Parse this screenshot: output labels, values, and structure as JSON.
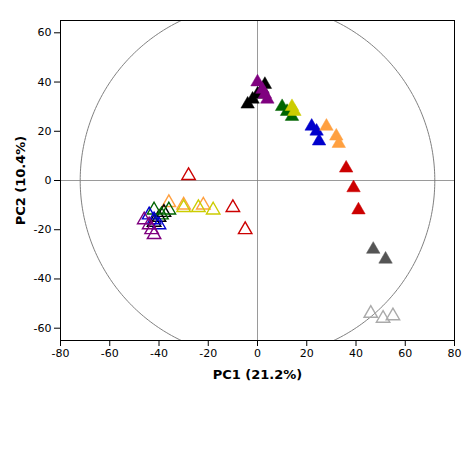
{
  "chart_data": {
    "type": "scatter",
    "xlabel": "PC1 (21.2%)",
    "ylabel": "PC2 (10.4%)",
    "xlim": [
      -80,
      80
    ],
    "ylim": [
      -65,
      65
    ],
    "xticks": [
      -80,
      -60,
      -40,
      -20,
      0,
      20,
      40,
      60,
      80
    ],
    "yticks": [
      -60,
      -40,
      -20,
      0,
      20,
      40,
      60
    ],
    "grid": false,
    "circle_center": [
      0,
      0
    ],
    "circle_radius": 72,
    "hline": 0,
    "vline": 0,
    "series": [
      {
        "color": "#000000",
        "marker": "triangle",
        "x": [
          -4,
          -2,
          0,
          2,
          3
        ],
        "y": [
          31,
          33,
          35,
          37,
          39
        ]
      },
      {
        "color": "#7f007f",
        "marker": "triangle",
        "x": [
          0,
          2,
          3,
          4
        ],
        "y": [
          40,
          37,
          35,
          33
        ]
      },
      {
        "color": "#006400",
        "marker": "triangle",
        "x": [
          10,
          12,
          14
        ],
        "y": [
          30,
          28,
          26
        ]
      },
      {
        "color": "#cccc00",
        "marker": "triangle",
        "x": [
          14,
          15
        ],
        "y": [
          30,
          28
        ]
      },
      {
        "color": "#0000cc",
        "marker": "triangle",
        "x": [
          22,
          24,
          25
        ],
        "y": [
          22,
          20,
          16
        ]
      },
      {
        "color": "#ffa040",
        "marker": "triangle",
        "x": [
          28,
          32,
          33
        ],
        "y": [
          22,
          18,
          15
        ]
      },
      {
        "color": "#cc0000",
        "marker": "triangle",
        "x": [
          36,
          39,
          41
        ],
        "y": [
          5,
          -3,
          -12
        ]
      },
      {
        "color": "#555555",
        "marker": "triangle",
        "x": [
          47,
          52
        ],
        "y": [
          -28,
          -32
        ]
      },
      {
        "color": "#cc0000",
        "marker": "triangle-open",
        "x": [
          -28,
          -10,
          -5
        ],
        "y": [
          2,
          -11,
          -20
        ]
      },
      {
        "color": "#ffa040",
        "marker": "triangle-open",
        "x": [
          -36,
          -30,
          -22
        ],
        "y": [
          -9,
          -10,
          -10
        ]
      },
      {
        "color": "#cccc00",
        "marker": "triangle-open",
        "x": [
          -30,
          -24,
          -18
        ],
        "y": [
          -11,
          -11,
          -12
        ]
      },
      {
        "color": "#000000",
        "marker": "triangle-open",
        "x": [
          -42,
          -40,
          -38
        ],
        "y": [
          -17,
          -15,
          -13
        ]
      },
      {
        "color": "#006400",
        "marker": "triangle-open",
        "x": [
          -42,
          -39,
          -36
        ],
        "y": [
          -12,
          -14,
          -12
        ]
      },
      {
        "color": "#0000cc",
        "marker": "triangle-open",
        "x": [
          -44,
          -42,
          -40
        ],
        "y": [
          -14,
          -16,
          -18
        ]
      },
      {
        "color": "#7f007f",
        "marker": "triangle-open",
        "x": [
          -46,
          -44,
          -43,
          -42
        ],
        "y": [
          -16,
          -18,
          -20,
          -22
        ]
      },
      {
        "color": "#aaaaaa",
        "marker": "triangle-open",
        "x": [
          46,
          51,
          55
        ],
        "y": [
          -54,
          -56,
          -55
        ]
      }
    ]
  }
}
